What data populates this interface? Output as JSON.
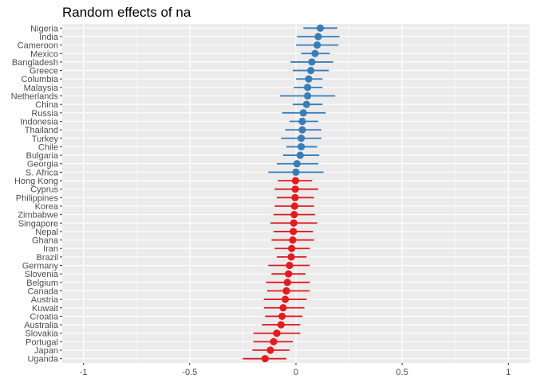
{
  "chart_data": {
    "type": "scatter",
    "title": "Random effects of na",
    "xlabel": "",
    "ylabel": "",
    "xlim": [
      -1.1,
      1.1
    ],
    "xticks": [
      -1,
      -0.5,
      0,
      0.5,
      1
    ],
    "x_tick_labels": [
      "-1",
      "-0.5",
      "0",
      "0.5",
      "1"
    ],
    "grid": true,
    "legend": "none",
    "colors": {
      "positive": "#377eb8",
      "negative": "#e41a1c",
      "panel": "#ebebeb",
      "grid": "#ffffff"
    },
    "points": [
      {
        "label": "Nigeria",
        "estimate": 0.115,
        "lower": 0.035,
        "upper": 0.195,
        "group": "positive"
      },
      {
        "label": "India",
        "estimate": 0.105,
        "lower": 0.005,
        "upper": 0.205,
        "group": "positive"
      },
      {
        "label": "Cameroon",
        "estimate": 0.1,
        "lower": 0.0,
        "upper": 0.2,
        "group": "positive"
      },
      {
        "label": "Mexico",
        "estimate": 0.09,
        "lower": 0.025,
        "upper": 0.16,
        "group": "positive"
      },
      {
        "label": "Bangladesh",
        "estimate": 0.075,
        "lower": -0.025,
        "upper": 0.175,
        "group": "positive"
      },
      {
        "label": "Greece",
        "estimate": 0.07,
        "lower": -0.015,
        "upper": 0.155,
        "group": "positive"
      },
      {
        "label": "Columbia",
        "estimate": 0.06,
        "lower": 0.0,
        "upper": 0.125,
        "group": "positive"
      },
      {
        "label": "Malaysia",
        "estimate": 0.055,
        "lower": -0.01,
        "upper": 0.125,
        "group": "positive"
      },
      {
        "label": "Netherlands",
        "estimate": 0.055,
        "lower": -0.075,
        "upper": 0.185,
        "group": "positive"
      },
      {
        "label": "China",
        "estimate": 0.05,
        "lower": -0.015,
        "upper": 0.125,
        "group": "positive"
      },
      {
        "label": "Russia",
        "estimate": 0.035,
        "lower": -0.065,
        "upper": 0.14,
        "group": "positive"
      },
      {
        "label": "Indonesia",
        "estimate": 0.03,
        "lower": -0.03,
        "upper": 0.105,
        "group": "positive"
      },
      {
        "label": "Thailand",
        "estimate": 0.03,
        "lower": -0.05,
        "upper": 0.12,
        "group": "positive"
      },
      {
        "label": "Turkey",
        "estimate": 0.025,
        "lower": -0.07,
        "upper": 0.12,
        "group": "positive"
      },
      {
        "label": "Chile",
        "estimate": 0.025,
        "lower": -0.045,
        "upper": 0.1,
        "group": "positive"
      },
      {
        "label": "Bulgaria",
        "estimate": 0.02,
        "lower": -0.06,
        "upper": 0.11,
        "group": "positive"
      },
      {
        "label": "Georgia",
        "estimate": 0.005,
        "lower": -0.09,
        "upper": 0.105,
        "group": "positive"
      },
      {
        "label": "S. Africa",
        "estimate": 0.0,
        "lower": -0.13,
        "upper": 0.13,
        "group": "positive"
      },
      {
        "label": "Hong Kong",
        "estimate": -0.002,
        "lower": -0.085,
        "upper": 0.075,
        "group": "negative"
      },
      {
        "label": "Cyprus",
        "estimate": -0.003,
        "lower": -0.1,
        "upper": 0.105,
        "group": "negative"
      },
      {
        "label": "Philippines",
        "estimate": -0.004,
        "lower": -0.09,
        "upper": 0.085,
        "group": "negative"
      },
      {
        "label": "Korea",
        "estimate": -0.006,
        "lower": -0.1,
        "upper": 0.085,
        "group": "negative"
      },
      {
        "label": "Zimbabwe",
        "estimate": -0.008,
        "lower": -0.105,
        "upper": 0.09,
        "group": "negative"
      },
      {
        "label": "Singapore",
        "estimate": -0.01,
        "lower": -0.12,
        "upper": 0.1,
        "group": "negative"
      },
      {
        "label": "Nepal",
        "estimate": -0.012,
        "lower": -0.105,
        "upper": 0.08,
        "group": "negative"
      },
      {
        "label": "Ghana",
        "estimate": -0.015,
        "lower": -0.115,
        "upper": 0.085,
        "group": "negative"
      },
      {
        "label": "Iran",
        "estimate": -0.02,
        "lower": -0.1,
        "upper": 0.065,
        "group": "negative"
      },
      {
        "label": "Brazil",
        "estimate": -0.022,
        "lower": -0.09,
        "upper": 0.05,
        "group": "negative"
      },
      {
        "label": "Germany",
        "estimate": -0.03,
        "lower": -0.13,
        "upper": 0.065,
        "group": "negative"
      },
      {
        "label": "Slovenia",
        "estimate": -0.035,
        "lower": -0.115,
        "upper": 0.045,
        "group": "negative"
      },
      {
        "label": "Belgium",
        "estimate": -0.04,
        "lower": -0.14,
        "upper": 0.065,
        "group": "negative"
      },
      {
        "label": "Canada",
        "estimate": -0.045,
        "lower": -0.135,
        "upper": 0.065,
        "group": "negative"
      },
      {
        "label": "Austria",
        "estimate": -0.05,
        "lower": -0.15,
        "upper": 0.05,
        "group": "negative"
      },
      {
        "label": "Kuwait",
        "estimate": -0.06,
        "lower": -0.15,
        "upper": 0.04,
        "group": "negative"
      },
      {
        "label": "Croatia",
        "estimate": -0.065,
        "lower": -0.145,
        "upper": 0.03,
        "group": "negative"
      },
      {
        "label": "Australia",
        "estimate": -0.07,
        "lower": -0.16,
        "upper": 0.02,
        "group": "negative"
      },
      {
        "label": "Slovakia",
        "estimate": -0.09,
        "lower": -0.2,
        "upper": 0.02,
        "group": "negative"
      },
      {
        "label": "Portugal",
        "estimate": -0.105,
        "lower": -0.2,
        "upper": -0.015,
        "group": "negative"
      },
      {
        "label": "Japan",
        "estimate": -0.12,
        "lower": -0.205,
        "upper": -0.03,
        "group": "negative"
      },
      {
        "label": "Uganda",
        "estimate": -0.145,
        "lower": -0.25,
        "upper": -0.045,
        "group": "negative"
      }
    ]
  }
}
